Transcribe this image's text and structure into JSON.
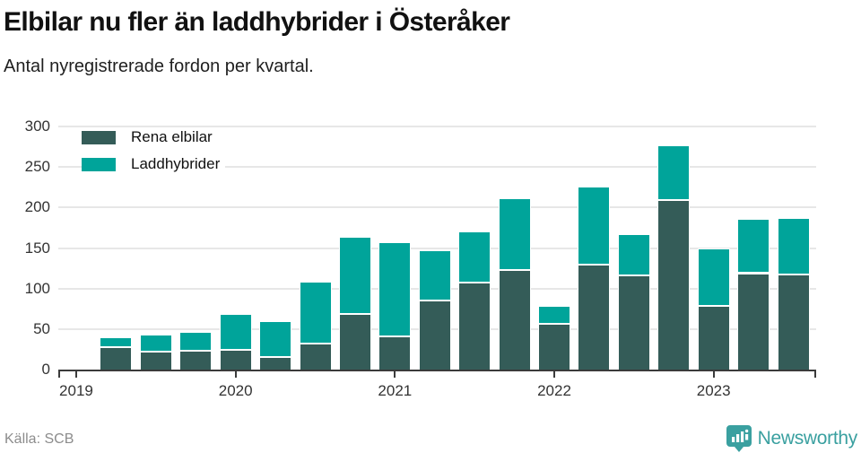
{
  "header": {
    "title": "Elbilar nu fler än laddhybrider i Österåker",
    "subtitle": "Antal nyregistrerade fordon per kvartal."
  },
  "legend": [
    {
      "label": "Rena elbilar",
      "color": "#345C58"
    },
    {
      "label": "Laddhybrider",
      "color": "#00A49A"
    }
  ],
  "chart_data": {
    "type": "bar",
    "stacked": true,
    "title": "Elbilar nu fler än laddhybrider i Österåker",
    "subtitle": "Antal nyregistrerade fordon per kvartal.",
    "x": [
      "2019 Q2",
      "2019 Q3",
      "2019 Q4",
      "2020 Q1",
      "2020 Q2",
      "2020 Q3",
      "2020 Q4",
      "2021 Q1",
      "2021 Q2",
      "2021 Q3",
      "2021 Q4",
      "2022 Q1",
      "2022 Q2",
      "2022 Q3",
      "2022 Q4",
      "2023 Q1",
      "2023 Q2",
      "2023 Q3"
    ],
    "series": [
      {
        "name": "Rena elbilar",
        "color": "#345C58",
        "values": [
          28,
          22,
          23,
          24,
          15,
          32,
          69,
          41,
          85,
          107,
          123,
          56,
          129,
          116,
          209,
          79,
          119,
          117
        ]
      },
      {
        "name": "Laddhybrider",
        "color": "#00A49A",
        "values": [
          12,
          21,
          23,
          45,
          45,
          77,
          95,
          116,
          62,
          64,
          88,
          23,
          97,
          51,
          68,
          71,
          67,
          70
        ]
      }
    ],
    "xlabel": "",
    "ylabel": "",
    "ylim": [
      0,
      300
    ],
    "yticks": [
      0,
      50,
      100,
      150,
      200,
      250,
      300
    ],
    "xtick_labels": [
      "2019",
      "2020",
      "2021",
      "2022",
      "2023"
    ],
    "grid": true,
    "legend_position": "top-left"
  },
  "footer": {
    "source": "Källa: SCB",
    "brand": "Newsworthy"
  },
  "colors": {
    "dark_series": "#345C58",
    "teal_series": "#00A49A",
    "brand_teal": "#3AA0A0",
    "grid": "#e7e7e7",
    "axis": "#3b3b3b"
  }
}
